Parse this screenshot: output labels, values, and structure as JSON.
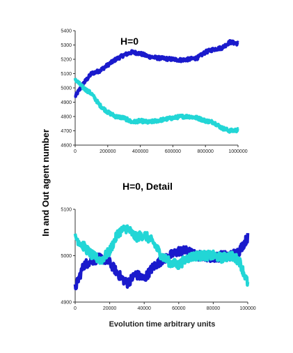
{
  "chart_data": [
    {
      "type": "line",
      "title": "H=0",
      "xlim": [
        0,
        1000000
      ],
      "ylim": [
        4600,
        5400
      ],
      "x_ticks": [
        0,
        200000,
        400000,
        600000,
        800000,
        1000000
      ],
      "x_tick_labels": [
        "0",
        "200000",
        "400000",
        "600000",
        "800000",
        "1000000"
      ],
      "y_ticks": [
        4600,
        4700,
        4800,
        4900,
        5000,
        5100,
        5200,
        5300,
        5400
      ],
      "y_tick_labels": [
        "4600",
        "4700",
        "4800",
        "4900",
        "5000",
        "5100",
        "5200",
        "5300",
        "5400"
      ],
      "series": [
        {
          "color": "#1a1acc",
          "noise": 12,
          "x": [
            0,
            50000,
            100000,
            150000,
            200000,
            250000,
            300000,
            350000,
            400000,
            450000,
            500000,
            550000,
            600000,
            650000,
            700000,
            750000,
            800000,
            850000,
            900000,
            950000,
            1000000
          ],
          "y": [
            4940,
            5030,
            5100,
            5120,
            5160,
            5200,
            5230,
            5250,
            5240,
            5220,
            5210,
            5205,
            5200,
            5195,
            5200,
            5210,
            5250,
            5270,
            5280,
            5320,
            5310
          ]
        },
        {
          "color": "#22d6d6",
          "noise": 12,
          "x": [
            0,
            50000,
            100000,
            150000,
            200000,
            250000,
            300000,
            350000,
            400000,
            450000,
            500000,
            550000,
            600000,
            650000,
            700000,
            750000,
            800000,
            850000,
            900000,
            950000,
            1000000
          ],
          "y": [
            5060,
            5000,
            4960,
            4880,
            4830,
            4800,
            4790,
            4760,
            4770,
            4760,
            4770,
            4780,
            4790,
            4800,
            4800,
            4790,
            4770,
            4760,
            4720,
            4700,
            4705
          ]
        }
      ]
    },
    {
      "type": "line",
      "title": "H=0, Detail",
      "xlabel": "Evolution time arbitrary units",
      "xlim": [
        0,
        100000
      ],
      "ylim": [
        4900,
        5100
      ],
      "x_ticks": [
        0,
        20000,
        40000,
        60000,
        80000,
        100000
      ],
      "x_tick_labels": [
        "0",
        "20000",
        "40000",
        "60000",
        "80000",
        "100000"
      ],
      "y_ticks": [
        4900,
        5000,
        5100
      ],
      "y_tick_labels": [
        "4900",
        "5000",
        "5100"
      ],
      "series": [
        {
          "color": "#1a1acc",
          "noise": 10,
          "x": [
            0,
            5000,
            10000,
            15000,
            20000,
            25000,
            30000,
            35000,
            40000,
            45000,
            50000,
            55000,
            60000,
            65000,
            70000,
            75000,
            80000,
            85000,
            90000,
            95000,
            100000
          ],
          "y": [
            4930,
            4980,
            4990,
            4995,
            4985,
            4960,
            4940,
            4960,
            4950,
            4975,
            4990,
            5000,
            5010,
            5010,
            5000,
            5000,
            4995,
            5000,
            5000,
            5010,
            5040
          ]
        },
        {
          "color": "#22d6d6",
          "noise": 10,
          "x": [
            0,
            5000,
            10000,
            15000,
            20000,
            25000,
            30000,
            35000,
            40000,
            45000,
            50000,
            55000,
            60000,
            65000,
            70000,
            75000,
            80000,
            85000,
            90000,
            95000,
            100000
          ],
          "y": [
            5040,
            5020,
            5000,
            4990,
            5010,
            5050,
            5060,
            5040,
            5045,
            5030,
            5000,
            4985,
            4980,
            4995,
            5000,
            5000,
            5000,
            4995,
            5000,
            4990,
            4940
          ]
        }
      ]
    }
  ],
  "ylabel": "In and Out agent number"
}
